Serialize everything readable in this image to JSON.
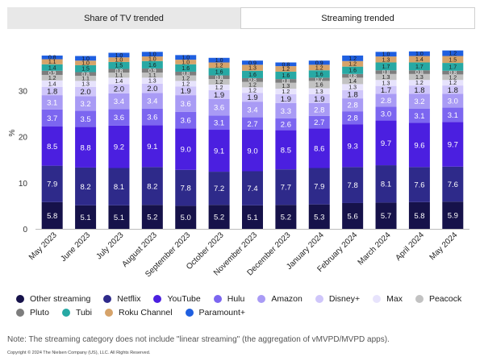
{
  "tabs": [
    {
      "label": "Share of TV trended",
      "active": false
    },
    {
      "label": "Streaming trended",
      "active": true
    }
  ],
  "note": "Note: The streaming category does not include \"linear streaming\" (the aggregation of vMVPD/MVPD apps).",
  "copyright": "Copyright © 2024 The Nielsen Company (US), LLC. All Rights Reserved.",
  "chart_data": {
    "type": "bar",
    "stacked": true,
    "ylabel": "%",
    "ylim": [
      0,
      40
    ],
    "yticks": [
      0,
      10,
      20,
      30
    ],
    "grid": false,
    "legend_position": "bottom",
    "categories": [
      "May 2023",
      "June 2023",
      "July 2023",
      "August 2023",
      "September 2023",
      "October 2023",
      "November 2023",
      "December 2023",
      "January 2024",
      "February 2024",
      "March 2024",
      "April 2024",
      "May 2024"
    ],
    "series": [
      {
        "name": "Other streaming",
        "color": "#16124a",
        "values": [
          5.8,
          5.1,
          5.1,
          5.2,
          5.0,
          5.2,
          5.1,
          5.2,
          5.3,
          5.6,
          5.7,
          5.8,
          5.9
        ]
      },
      {
        "name": "Netflix",
        "color": "#2e2a8a",
        "values": [
          7.9,
          8.2,
          8.1,
          8.2,
          7.8,
          7.2,
          7.4,
          7.7,
          7.9,
          7.8,
          8.1,
          7.6,
          7.6
        ]
      },
      {
        "name": "YouTube",
        "color": "#4b1fe0",
        "values": [
          8.5,
          8.8,
          9.2,
          9.1,
          9.0,
          9.1,
          9.0,
          8.5,
          8.6,
          9.3,
          9.7,
          9.6,
          9.7
        ]
      },
      {
        "name": "Hulu",
        "color": "#7c66f0",
        "values": [
          3.7,
          3.5,
          3.6,
          3.6,
          3.6,
          3.1,
          2.7,
          2.6,
          2.7,
          2.8,
          3.0,
          3.1,
          3.1
        ]
      },
      {
        "name": "Amazon",
        "color": "#a99bf5",
        "values": [
          3.1,
          3.2,
          3.4,
          3.4,
          3.6,
          3.6,
          3.4,
          3.3,
          2.8,
          2.8,
          2.8,
          3.2,
          3.0
        ]
      },
      {
        "name": "Disney+",
        "color": "#cfc6fa",
        "values": [
          1.8,
          2.0,
          2.0,
          2.0,
          1.9,
          1.9,
          1.9,
          1.9,
          1.9,
          1.8,
          1.7,
          1.8,
          1.8
        ]
      },
      {
        "name": "Max",
        "color": "#e7e3fc",
        "values": [
          1.4,
          1.3,
          1.4,
          1.3,
          1.2,
          1.2,
          1.2,
          1.2,
          1.3,
          1.3,
          1.3,
          1.2,
          1.2
        ]
      },
      {
        "name": "Peacock",
        "color": "#c2c2c2",
        "values": [
          1.2,
          1.1,
          1.1,
          1.1,
          1.2,
          1.2,
          1.2,
          1.3,
          1.6,
          1.4,
          1.3,
          1.3,
          1.2
        ]
      },
      {
        "name": "Pluto",
        "color": "#7d7d7d",
        "values": [
          0.9,
          0.8,
          0.8,
          0.9,
          0.8,
          0.8,
          0.8,
          0.8,
          0.7,
          0.8,
          0.8,
          0.8,
          0.8
        ]
      },
      {
        "name": "Tubi",
        "color": "#27a9a4",
        "values": [
          1.4,
          1.5,
          1.5,
          1.6,
          1.6,
          1.6,
          1.6,
          1.6,
          1.6,
          1.6,
          1.7,
          1.7,
          1.7
        ]
      },
      {
        "name": "Roku Channel",
        "color": "#d6a36a",
        "values": [
          1.1,
          1.0,
          1.0,
          1.0,
          1.0,
          1.2,
          1.3,
          1.2,
          1.2,
          1.2,
          1.3,
          1.4,
          1.5
        ]
      },
      {
        "name": "Paramount+",
        "color": "#1f5fe0",
        "values": [
          0.8,
          1.0,
          1.0,
          1.0,
          1.0,
          1.0,
          0.9,
          0.8,
          0.9,
          1.2,
          1.0,
          1.0,
          1.2
        ]
      }
    ]
  }
}
